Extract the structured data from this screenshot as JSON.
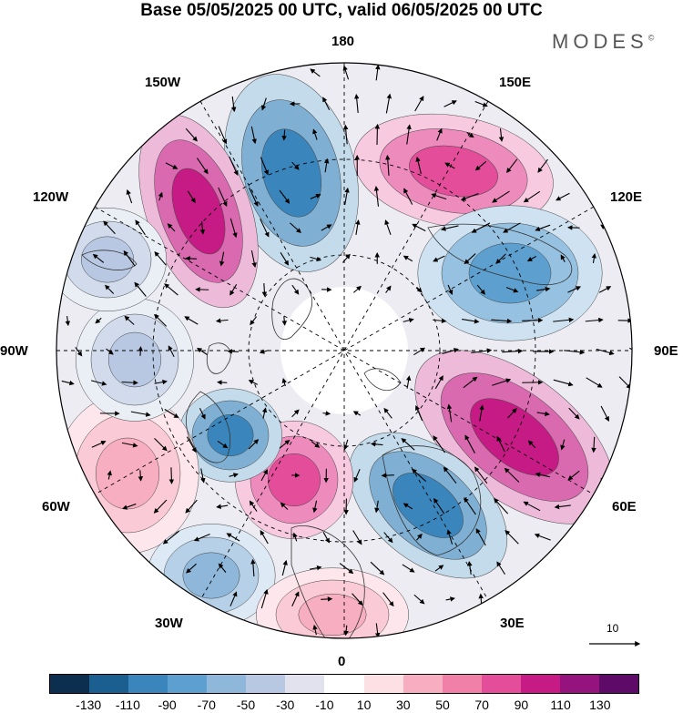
{
  "title": "Base 05/05/2025 00 UTC, valid 06/05/2025 00 UTC",
  "brand": "MODES",
  "brand_mark": "©",
  "longitude_labels": {
    "top": "180",
    "bottom": "0",
    "left": "90W",
    "right": "90E",
    "upper_left_a": "150W",
    "upper_left_b": "120W",
    "lower_left_a": "60W",
    "lower_left_b": "30W",
    "upper_right_a": "150E",
    "upper_right_b": "120E",
    "lower_right_a": "60E",
    "lower_right_b": "30E"
  },
  "reference_vector": {
    "value": "10"
  },
  "colorbar": {
    "colors": [
      "#0d2f4f",
      "#1b5f90",
      "#3a86bc",
      "#5d9fcf",
      "#8fb7da",
      "#b8c8e2",
      "#e2e2ef",
      "#ffffff",
      "#fde0e3",
      "#f7aec0",
      "#f080a8",
      "#e34d99",
      "#c61a84",
      "#94137c",
      "#5e0a68"
    ],
    "ticks": [
      "-130",
      "-110",
      "-90",
      "-70",
      "-50",
      "-30",
      "-10",
      "10",
      "30",
      "50",
      "70",
      "90",
      "110",
      "130"
    ]
  },
  "anomalies": [
    {
      "name": "neg-aleutian",
      "value": -90,
      "color": "#3a86bc"
    },
    {
      "name": "pos-alaska",
      "value": 110,
      "color": "#c61a84"
    },
    {
      "name": "pos-siberia",
      "value": 90,
      "color": "#e34d99"
    },
    {
      "name": "neg-central-asia",
      "value": -70,
      "color": "#5d9fcf"
    },
    {
      "name": "pos-west-siberia",
      "value": 110,
      "color": "#c61a84"
    },
    {
      "name": "neg-europe",
      "value": -90,
      "color": "#3a86bc"
    },
    {
      "name": "pos-greenland-sea",
      "value": 90,
      "color": "#e34d99"
    },
    {
      "name": "neg-labrador",
      "value": -90,
      "color": "#3a86bc"
    },
    {
      "name": "pos-atlantic",
      "value": 50,
      "color": "#f7aec0"
    },
    {
      "name": "neg-mid-atlantic",
      "value": -50,
      "color": "#8fb7da"
    },
    {
      "name": "pos-africa",
      "value": 50,
      "color": "#f7aec0"
    },
    {
      "name": "neg-hudson",
      "value": -30,
      "color": "#b8c8e2"
    },
    {
      "name": "neg-nw-canada",
      "value": -30,
      "color": "#b8c8e2"
    }
  ]
}
